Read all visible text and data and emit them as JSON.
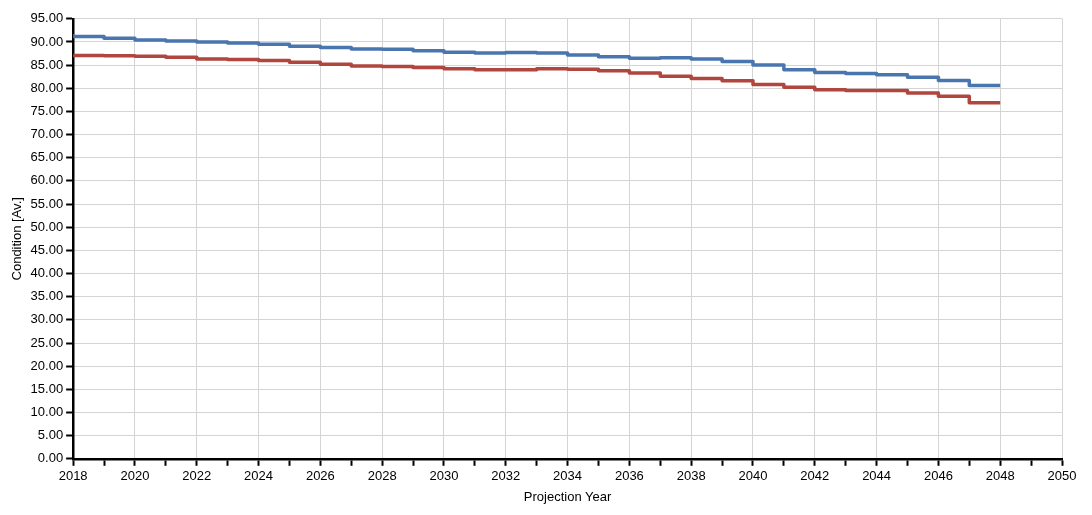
{
  "chart_data": {
    "type": "step",
    "xlabel": "Projection Year",
    "ylabel": "Condition [Av.]",
    "x": [
      2018,
      2019,
      2020,
      2021,
      2022,
      2023,
      2024,
      2025,
      2026,
      2027,
      2028,
      2029,
      2030,
      2031,
      2032,
      2033,
      2034,
      2035,
      2036,
      2037,
      2038,
      2039,
      2040,
      2041,
      2042,
      2043,
      2044,
      2045,
      2046,
      2047,
      2048
    ],
    "series": [
      {
        "color": "#4a76b0",
        "values": [
          91.7,
          91.2,
          90.8,
          90.4,
          90.2,
          90.0,
          89.8,
          89.5,
          89.1,
          88.8,
          88.5,
          88.4,
          88.1,
          87.8,
          87.6,
          87.7,
          87.6,
          87.2,
          86.8,
          86.5,
          86.6,
          86.3,
          85.8,
          85.0,
          84.0,
          83.4,
          83.2,
          82.9,
          82.4,
          81.7,
          80.6
        ]
      },
      {
        "color": "#b0463e",
        "values": [
          87.2,
          87.1,
          87.0,
          86.9,
          86.7,
          86.3,
          86.2,
          86.0,
          85.6,
          85.2,
          84.8,
          84.7,
          84.5,
          84.2,
          84.0,
          84.0,
          84.2,
          84.1,
          83.8,
          83.3,
          82.6,
          82.1,
          81.6,
          80.8,
          80.2,
          79.7,
          79.5,
          79.5,
          79.0,
          78.3,
          76.9
        ]
      }
    ],
    "xlim": [
      2018,
      2050
    ],
    "xticks": [
      2018,
      {
        "value": 2019,
        "label": null
      },
      2020,
      {
        "value": 2021,
        "label": null
      },
      2022,
      {
        "value": 2023,
        "label": null
      },
      2024,
      {
        "value": 2025,
        "label": null
      },
      2026,
      {
        "value": 2027,
        "label": null
      },
      2028,
      {
        "value": 2029,
        "label": null
      },
      2030,
      {
        "value": 2031,
        "label": null
      },
      2032,
      {
        "value": 2033,
        "label": null
      },
      2034,
      {
        "value": 2035,
        "label": null
      },
      2036,
      {
        "value": 2037,
        "label": null
      },
      2038,
      {
        "value": 2039,
        "label": null
      },
      2040,
      {
        "value": 2041,
        "label": null
      },
      2042,
      {
        "value": 2043,
        "label": null
      },
      2044,
      {
        "value": 2045,
        "label": null
      },
      2046,
      {
        "value": 2047,
        "label": null
      },
      2048,
      {
        "value": 2049,
        "label": null
      },
      2050
    ],
    "ylim": [
      0,
      95
    ],
    "yticks": [
      {
        "value": 0,
        "label": "0.00"
      },
      {
        "value": 5,
        "label": "5.00"
      },
      {
        "value": 10,
        "label": "10.00"
      },
      {
        "value": 15,
        "label": "15.00"
      },
      {
        "value": 20,
        "label": "20.00"
      },
      {
        "value": 25,
        "label": "25.00"
      },
      {
        "value": 30,
        "label": "30.00"
      },
      {
        "value": 35,
        "label": "35.00"
      },
      {
        "value": 40,
        "label": "40.00"
      },
      {
        "value": 45,
        "label": "45.00"
      },
      {
        "value": 50,
        "label": "50.00"
      },
      {
        "value": 55,
        "label": "55.00"
      },
      {
        "value": 60,
        "label": "60.00"
      },
      {
        "value": 65,
        "label": "65.00"
      },
      {
        "value": 70,
        "label": "70.00"
      },
      {
        "value": 75,
        "label": "75.00"
      },
      {
        "value": 80,
        "label": "80.00"
      },
      {
        "value": 85,
        "label": "85.00"
      },
      {
        "value": 90,
        "label": "90.00"
      },
      {
        "value": 95,
        "label": "95.00"
      }
    ],
    "grid": true,
    "legend": false,
    "line_style": "solid",
    "marker": "none"
  }
}
